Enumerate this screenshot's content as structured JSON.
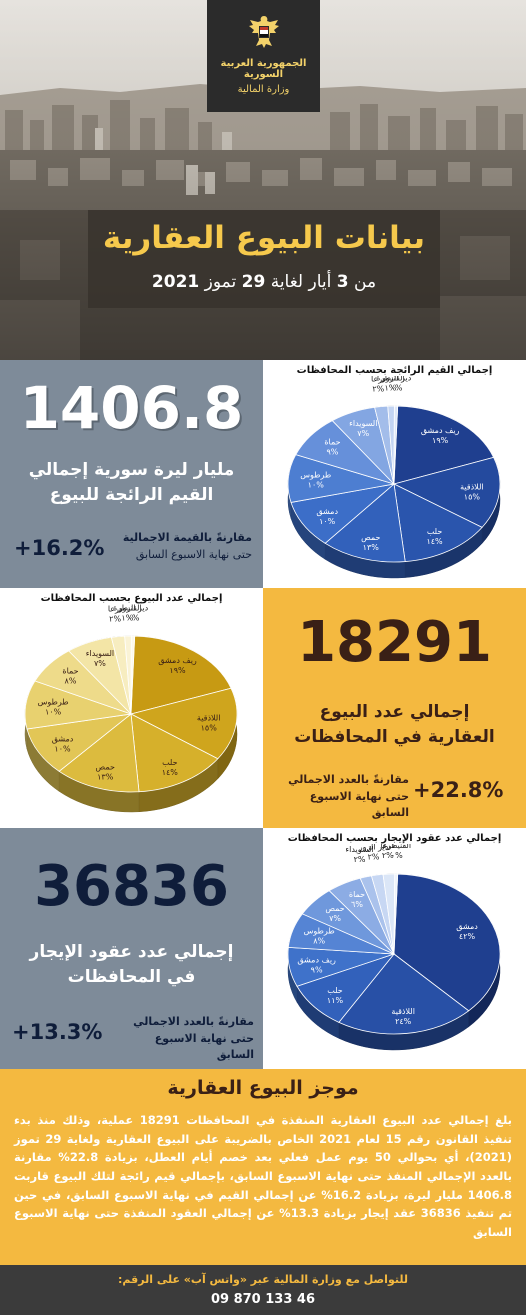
{
  "header": {
    "org_line1": "الجمهورية العربية السورية",
    "org_line2": "وزارة المالية",
    "title": "بيانات البيوع العقارية",
    "subtitle_prefix": "من",
    "subtitle_d1": "3",
    "subtitle_mid": "أيار لغاية",
    "subtitle_d2": "29",
    "subtitle_mid2": "تموز",
    "subtitle_year": "2021"
  },
  "stat1": {
    "value": "1406.8",
    "label_line1": "مليار ليرة سورية إجمالي",
    "label_line2": "القيم الرائجة للبيوع",
    "change": "+16.2%",
    "compare_line1": "مقارنةً بالقيمة الاجمالية",
    "compare_line2": "حتى نهاية الاسبوع السابق"
  },
  "stat2": {
    "value": "18291",
    "label_line1": "إجمالي عدد البيوع",
    "label_line2": "العقارية في المحافظات",
    "change": "+22.8%",
    "compare_line1": "مقارنةً بالعدد الاجمالي",
    "compare_line2": "حتى نهاية الاسبوع السابق"
  },
  "stat3": {
    "value": "36836",
    "label_line1": "إجمالي عدد عقود الإيجار",
    "label_line2": "في المحافظات",
    "change": "+13.3%",
    "compare_line1": "مقارنةً بالعدد الاجمالي",
    "compare_line2": "حتى نهاية الاسبوع السابق"
  },
  "chart_data": [
    {
      "type": "pie",
      "title": "إجمالي القيم الرائجة بحسب المحافظات",
      "slices": [
        {
          "name": "ريف دمشق",
          "label": "%١٩",
          "value": 19,
          "color": "#1f3f8f"
        },
        {
          "name": "اللاذقية",
          "label": "%١٥",
          "value": 15,
          "color": "#244a9e"
        },
        {
          "name": "حلب",
          "label": "%١٤",
          "value": 14,
          "color": "#2a55ad"
        },
        {
          "name": "حمص",
          "label": "%١٣",
          "value": 13,
          "color": "#3261bb"
        },
        {
          "name": "دمشق",
          "label": "%١٠",
          "value": 10,
          "color": "#3c6ec8"
        },
        {
          "name": "طرطوس",
          "label": "%١٠",
          "value": 10,
          "color": "#4d7ed1"
        },
        {
          "name": "حماة",
          "label": "%٩",
          "value": 9,
          "color": "#6690da"
        },
        {
          "name": "السويداء",
          "label": "%٧",
          "value": 7,
          "color": "#83a6e2"
        },
        {
          "name": "درعا",
          "label": "%٢",
          "value": 2,
          "color": "#a3bdea"
        },
        {
          "name": "القنيطرة",
          "label": "%١",
          "value": 1,
          "color": "#c3d4f2"
        },
        {
          "name": "دير الزور",
          "label": "%٠",
          "value": 0.5,
          "color": "#dfe8f8"
        }
      ]
    },
    {
      "type": "pie",
      "title": "إجمالي عدد البيوع بحسب المحافظات",
      "slices": [
        {
          "name": "ريف دمشق",
          "label": "%١٩",
          "value": 19,
          "color": "#c79a13"
        },
        {
          "name": "اللاذقية",
          "label": "%١٥",
          "value": 15,
          "color": "#cfa51d"
        },
        {
          "name": "حلب",
          "label": "%١٤",
          "value": 14,
          "color": "#d6b02b"
        },
        {
          "name": "حمص",
          "label": "%١٣",
          "value": 13,
          "color": "#dcbb3e"
        },
        {
          "name": "دمشق",
          "label": "%١٠",
          "value": 10,
          "color": "#e2c656"
        },
        {
          "name": "طرطوس",
          "label": "%١٠",
          "value": 10,
          "color": "#e8d16f"
        },
        {
          "name": "حماة",
          "label": "%٨",
          "value": 8,
          "color": "#eedb8a"
        },
        {
          "name": "السويداء",
          "label": "%٧",
          "value": 7,
          "color": "#f3e5a6"
        },
        {
          "name": "درعا",
          "label": "%٢",
          "value": 2,
          "color": "#f7edc0"
        },
        {
          "name": "القنيطرة",
          "label": "%١",
          "value": 1,
          "color": "#faf3d6"
        },
        {
          "name": "دير الزور",
          "label": "%٠",
          "value": 0.5,
          "color": "#fdf9ea"
        }
      ]
    },
    {
      "type": "pie",
      "title": "إجمالي عدد عقود الإيجار بحسب المحافظات",
      "slices": [
        {
          "name": "دمشق",
          "label": "%٤٢",
          "value": 42,
          "color": "#1f3f8f"
        },
        {
          "name": "اللاذقية",
          "label": "%٢٤",
          "value": 24,
          "color": "#2850a6"
        },
        {
          "name": "حلب",
          "label": "%١١",
          "value": 11,
          "color": "#3261bb"
        },
        {
          "name": "ريف دمشق",
          "label": "%٩",
          "value": 9,
          "color": "#3f72ca"
        },
        {
          "name": "طرطوس",
          "label": "%٨",
          "value": 8,
          "color": "#5584d4"
        },
        {
          "name": "حمص",
          "label": "%٧",
          "value": 7,
          "color": "#6f98dc"
        },
        {
          "name": "حماة",
          "label": "%٦",
          "value": 6,
          "color": "#8cace4"
        },
        {
          "name": "السويداء",
          "label": "%٢",
          "value": 2,
          "color": "#aac2ec"
        },
        {
          "name": "دير الزور",
          "label": "%٢",
          "value": 2,
          "color": "#c7d7f3"
        },
        {
          "name": "درعا",
          "label": "%٢",
          "value": 2,
          "color": "#dbe6f7"
        },
        {
          "name": "القنيطرة",
          "label": "%٠",
          "value": 0.5,
          "color": "#eef3fb"
        }
      ]
    }
  ],
  "summary": {
    "title": "موجز البيوع العقارية",
    "body": "بلغ إجمالي عدد البيوع العقارية المنفذة في المحافظات 18291 عملية، وذلك منذ بدء تنفيذ القانون رقم 15 لعام 2021 الخاص بالضريبة على البيوع العقارية ولغاية 29 تموز (2021)، أي بحوالي 50 يوم عمل فعلي بعد خصم أيام العطل، بزيادة 22.8% مقارنة بالعدد الإجمالي المنفذ حتى نهاية الاسبوع السابق، بإجمالي قيم رائجة لتلك البيوع قاربت 1406.8 مليار ليرة، بزيادة 16.2% عن إجمالي القيم في نهاية الاسبوع السابق، في حين تم تنفيذ 36836 عقد إيجار بزيادة 13.3% عن إجمالي العقود المنفذة حتى نهاية الاسبوع السابق"
  },
  "footer": {
    "line1": "للتواصل مع وزارة المالية عبر «واتس آب» على الرقم:",
    "phone": "09 870 133 46"
  },
  "colors": {
    "slate": "#7e8b99",
    "gold": "#f4b940",
    "brown": "#3a2016",
    "navy": "#0f1d3a",
    "footer": "#3b3b3b"
  }
}
